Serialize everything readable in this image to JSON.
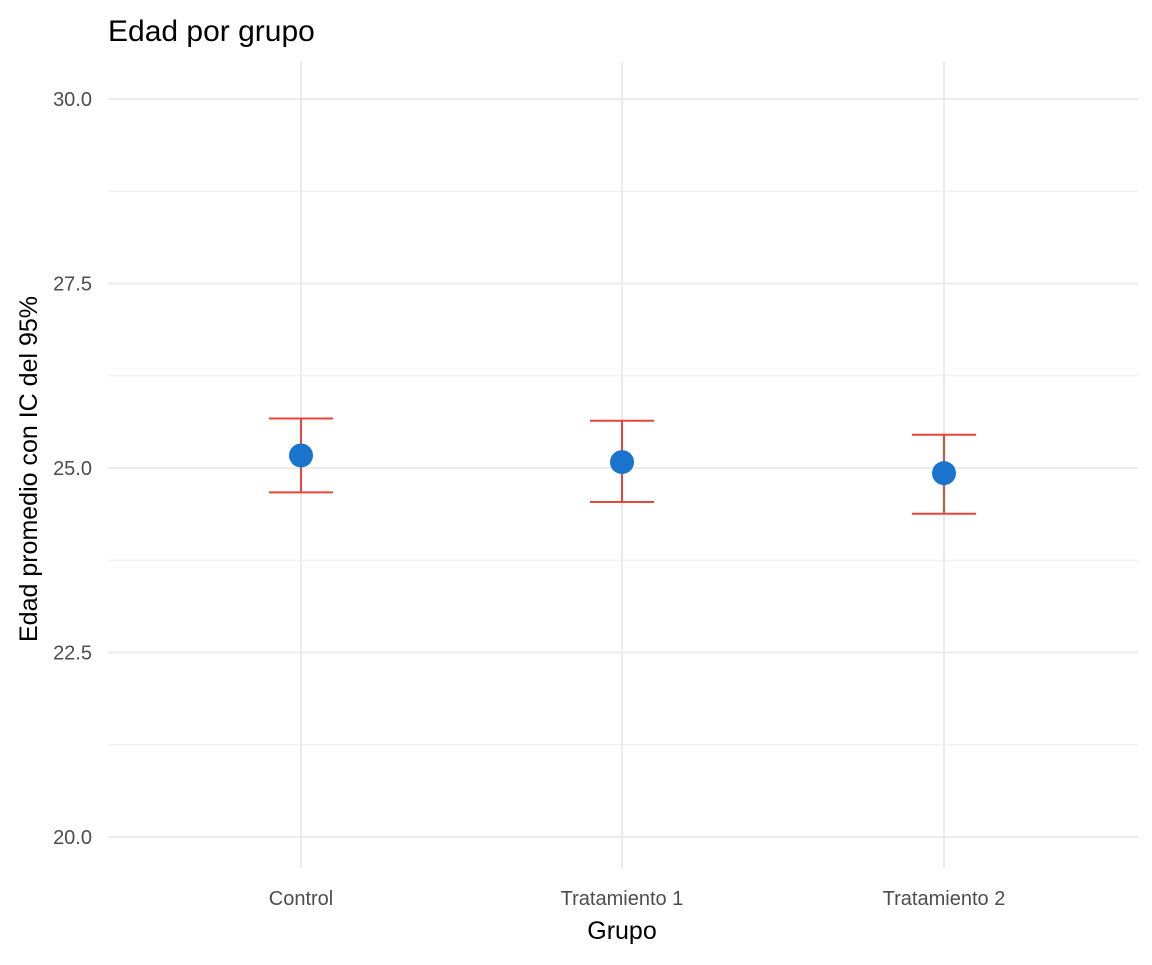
{
  "chart_data": {
    "type": "scatter",
    "title": "Edad por grupo",
    "xlabel": "Grupo",
    "ylabel": "Edad promedio con IC del 95%",
    "categories": [
      "Control",
      "Tratamiento 1",
      "Tratamiento 2"
    ],
    "series": [
      {
        "name": "Edad promedio",
        "values": [
          25.17,
          25.08,
          24.93
        ],
        "ci_lower": [
          24.67,
          24.54,
          24.38
        ],
        "ci_upper": [
          25.67,
          25.64,
          25.45
        ]
      }
    ],
    "ylim": [
      20,
      30
    ],
    "yticks": [
      20.0,
      22.5,
      25.0,
      27.5,
      30.0
    ],
    "ytick_labels": [
      "20.0",
      "22.5",
      "25.0",
      "27.5",
      "30.0"
    ],
    "grid": true,
    "legend": "none",
    "colors": {
      "point": "#1874cd",
      "errorbar": "#e8453c",
      "grid": "#ebebeb"
    }
  }
}
